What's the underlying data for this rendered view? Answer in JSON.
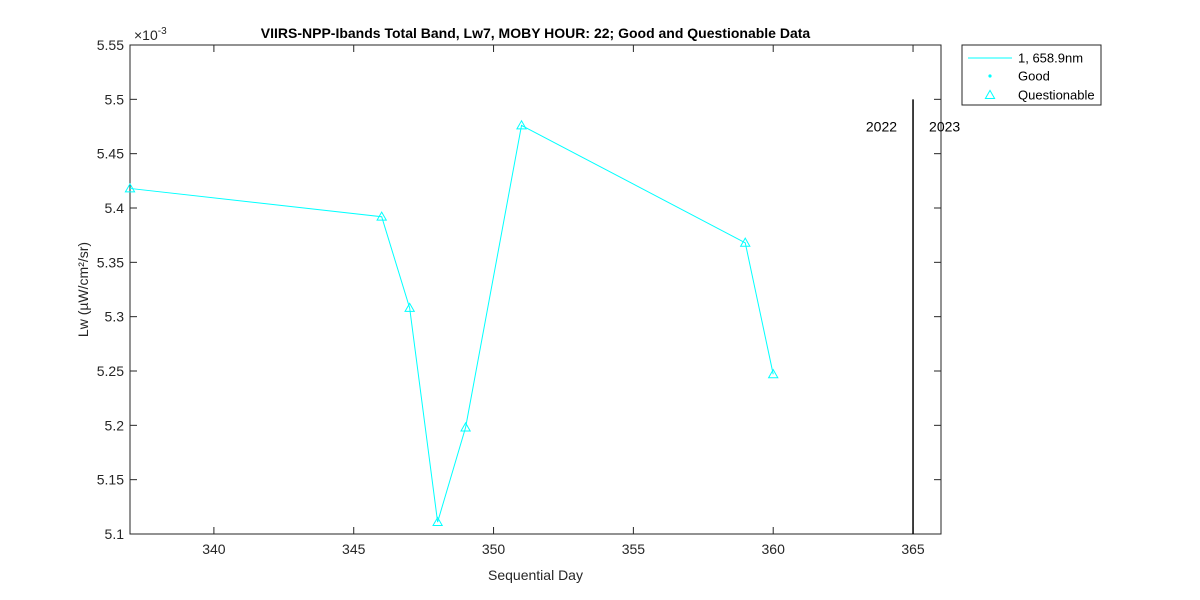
{
  "chart_data": {
    "type": "line",
    "title": "VIIRS-NPP-Ibands Total Band,  Lw7, MOBY HOUR: 22;  Good and Questionable Data",
    "xlabel": "Sequential Day",
    "ylabel": "Lw (µW/cm²/sr)",
    "y_exponent_label": "×10",
    "y_exponent_power": "-3",
    "xlim": [
      337,
      366
    ],
    "ylim": [
      5.1,
      5.55
    ],
    "x_ticks": [
      340,
      345,
      350,
      355,
      360,
      365
    ],
    "x_tick_labels": [
      "340",
      "345",
      "350",
      "355",
      "360",
      "365"
    ],
    "y_ticks": [
      5.1,
      5.15,
      5.2,
      5.25,
      5.3,
      5.35,
      5.4,
      5.45,
      5.5,
      5.55
    ],
    "y_tick_labels": [
      "5.1",
      "5.15",
      "5.2",
      "5.25",
      "5.3",
      "5.35",
      "5.4",
      "5.45",
      "5.5",
      "5.55"
    ],
    "grid": false,
    "legend_position": "outside top-right",
    "series": [
      {
        "name": "1, 658.9nm",
        "color": "#00ffff",
        "x": [
          337,
          346,
          347,
          348,
          349,
          351,
          359,
          360
        ],
        "y": [
          5.418,
          5.392,
          5.308,
          5.111,
          5.198,
          5.476,
          5.368,
          5.247
        ]
      }
    ],
    "legend": [
      {
        "label": "1, 658.9nm",
        "marker": "line"
      },
      {
        "label": "Good",
        "marker": "dot"
      },
      {
        "label": "Questionable",
        "marker": "triangle"
      }
    ],
    "year_divider": {
      "x": 365,
      "y_top": 5.5,
      "left_label": "2022",
      "right_label": "2023",
      "label_y": 5.475
    }
  }
}
